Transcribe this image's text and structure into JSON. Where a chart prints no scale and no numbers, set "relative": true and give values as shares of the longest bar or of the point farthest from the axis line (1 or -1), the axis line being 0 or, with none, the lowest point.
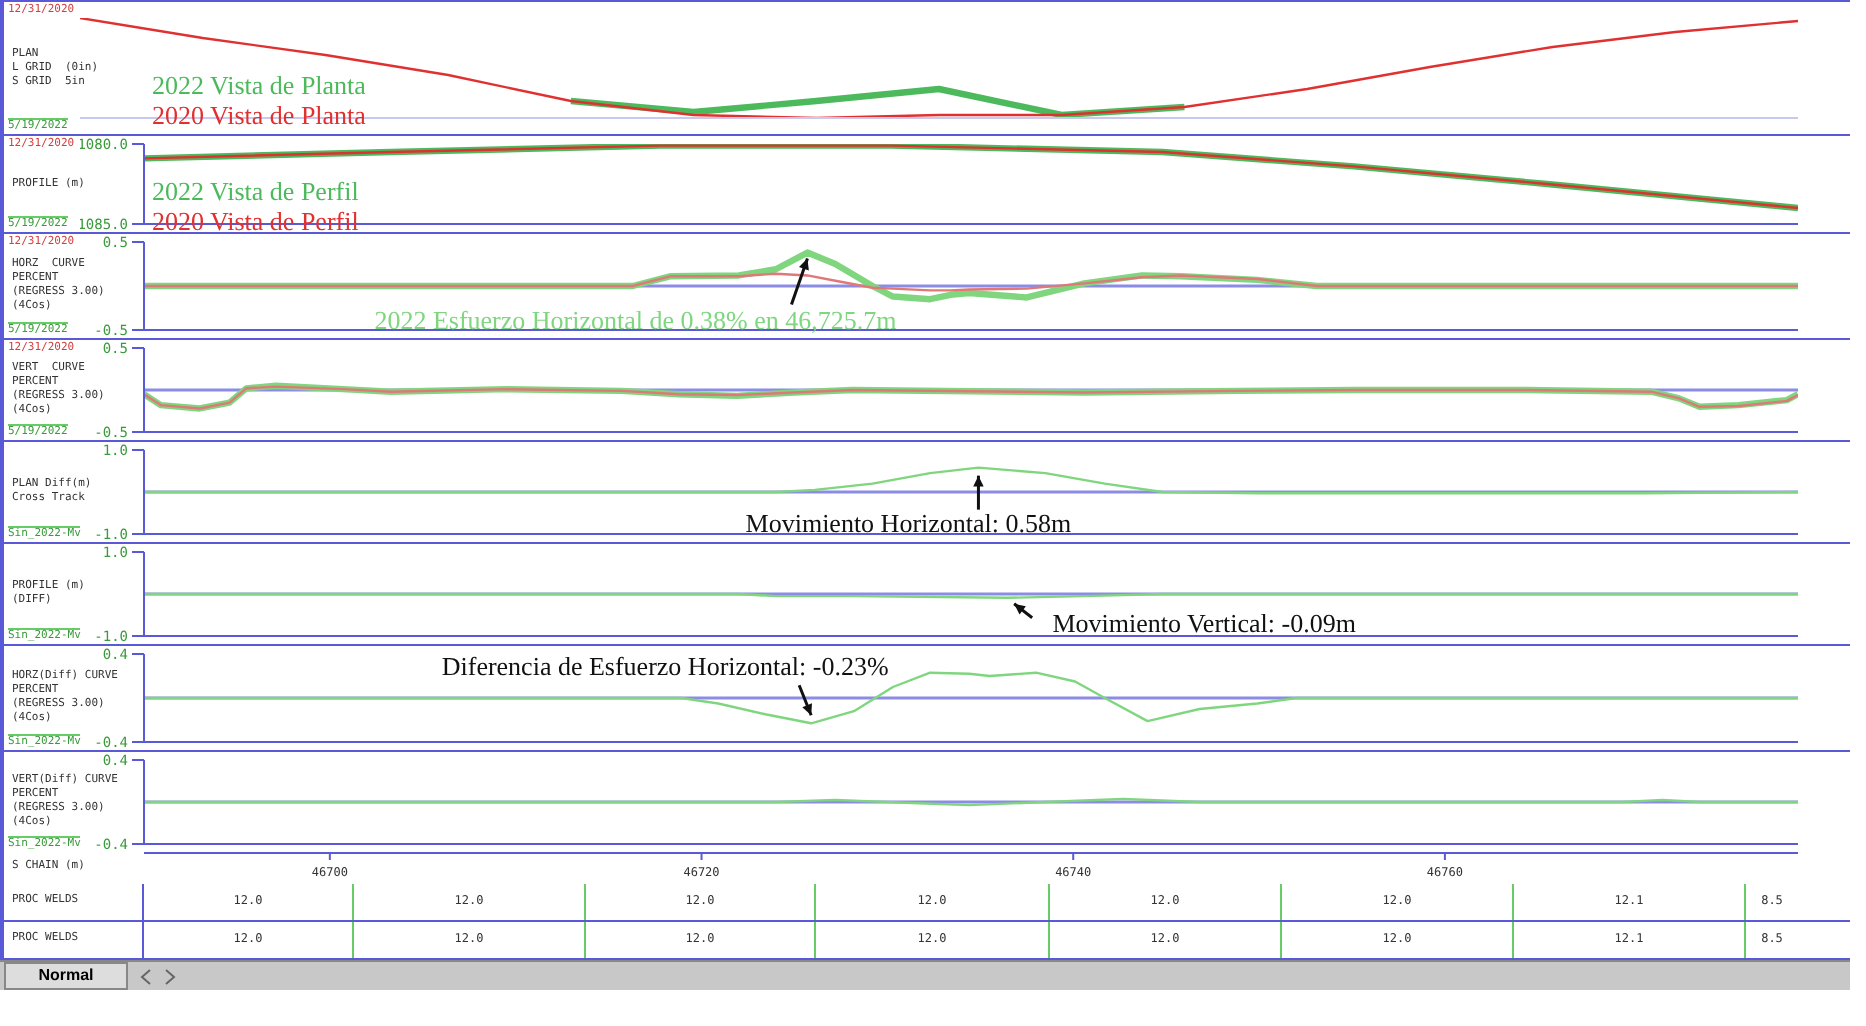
{
  "chart_data": [
    {
      "type": "line",
      "relative": true,
      "ylabel": "PLAN\nL GRID  (0in)\nS GRID  5in",
      "annotations": [
        "12/31/2020",
        "5/19/2022"
      ],
      "categories": [
        null,
        null,
        null,
        null,
        null,
        null,
        null,
        null,
        null,
        null,
        null,
        null,
        null,
        null,
        null
      ],
      "series": [
        {
          "name": "2022 Vista de Planta",
          "color": "#4cba5c",
          "values": [
            null,
            null,
            null,
            null,
            0.17,
            0.06,
            0.17,
            0.29,
            0.03,
            0.11,
            null,
            null,
            null,
            null,
            null
          ]
        },
        {
          "name": "2020 Vista de Planta",
          "color": "#e03030",
          "values": [
            1,
            0.8,
            0.63,
            0.43,
            0.17,
            0.03,
            0,
            0.03,
            0.03,
            0.11,
            0.29,
            0.51,
            0.71,
            0.86,
            0.97
          ]
        }
      ]
    },
    {
      "type": "line",
      "ylabel": "PROFILE (m)",
      "annotations": [
        "12/31/2020",
        "5/19/2022"
      ],
      "xlim": [
        46690,
        46779
      ],
      "ylim": [
        1085,
        1080
      ],
      "yticks": [
        {
          "value": 1080,
          "label": "1080.0"
        },
        {
          "value": 1085,
          "label": "1085.0"
        }
      ],
      "tick_labels": "y",
      "x": [
        46690,
        46703.3,
        46717.8,
        46730.2,
        46744.8,
        46755.1,
        46765.5,
        46779
      ],
      "series": [
        {
          "name": "2022 Vista de Perfil",
          "color": "#4cba5c",
          "values": [
            1080.9,
            1080.5,
            1080.1,
            1080.1,
            1080.5,
            1081.4,
            1082.5,
            1084.0
          ]
        },
        {
          "name": "2020 Vista de Perfil",
          "color": "#e03030",
          "values": [
            1080.9,
            1080.5,
            1080.1,
            1080.1,
            1080.5,
            1081.4,
            1082.5,
            1084.0
          ]
        }
      ]
    },
    {
      "type": "line",
      "ylabel": "HORZ  CURVE\nPERCENT\n(REGRESS 3.00)\n(4Cos)",
      "xlim": [
        46690,
        46779
      ],
      "ylim": [
        -0.5,
        0.5
      ],
      "yticks": [
        0.5,
        -0.5
      ],
      "tick_labels": "y",
      "ref_lines": [
        {
          "axis": "y",
          "value": 0,
          "color": "#8c8ce6"
        }
      ],
      "annotations": [
        "12/31/2020",
        "5/19/2022",
        {
          "text": "2022 Esfuerzo Horizontal de 0.38% en 46,725.7m",
          "x": 46725.7,
          "y": 0.38
        }
      ],
      "x": [
        46690,
        46716.3,
        46718.3,
        46722.0,
        46724.0,
        46725.7,
        46727.2,
        46729.2,
        46730.3,
        46732.3,
        46733.4,
        46734.4,
        46737.5,
        46740.6,
        46743.7,
        46745.8,
        46749.9,
        46753.1,
        46779
      ],
      "series": [
        {
          "color": "#7fd67f",
          "values": [
            0,
            0,
            0.11,
            0.12,
            0.19,
            0.38,
            0.25,
            0,
            -0.12,
            -0.15,
            -0.1,
            -0.08,
            -0.13,
            0.03,
            0.12,
            0.11,
            0.07,
            0,
            0
          ]
        },
        {
          "color": "#e07878",
          "values": [
            0,
            0,
            0.11,
            0.11,
            0.14,
            0.12,
            0.06,
            -0.02,
            -0.03,
            -0.05,
            -0.05,
            -0.04,
            -0.03,
            0.03,
            0.1,
            0.12,
            0.08,
            0,
            0
          ]
        }
      ]
    },
    {
      "type": "line",
      "ylabel": "VERT  CURVE\nPERCENT\n(REGRESS 3.00)\n(4Cos)",
      "xlim": [
        46690,
        46779
      ],
      "ylim": [
        -0.5,
        0.5
      ],
      "yticks": [
        0.5,
        -0.5
      ],
      "tick_labels": "y",
      "ref_lines": [
        {
          "axis": "y",
          "value": 0,
          "color": "#8c8ce6"
        }
      ],
      "annotations": [
        "12/31/2020",
        "5/19/2022"
      ],
      "x": [
        46690,
        46690.9,
        46693.0,
        46694.6,
        46695.5,
        46697.1,
        46700.7,
        46703.3,
        46709.5,
        46715.7,
        46718.8,
        46721.9,
        46725.0,
        46728.1,
        46740.6,
        46748.9,
        46755.1,
        46764.4,
        46771.1,
        46772.6,
        46773.7,
        46775.8,
        46778.4,
        46779
      ],
      "series": [
        {
          "color": "#7fd67f",
          "values": [
            -0.05,
            -0.18,
            -0.22,
            -0.15,
            0.02,
            0.05,
            0.01,
            -0.02,
            0.01,
            -0.01,
            -0.05,
            -0.07,
            -0.03,
            0,
            -0.03,
            -0.01,
            0,
            0,
            -0.02,
            -0.1,
            -0.2,
            -0.18,
            -0.12,
            -0.05
          ]
        },
        {
          "color": "#e07878",
          "values": [
            -0.05,
            -0.18,
            -0.22,
            -0.15,
            0.02,
            0.04,
            0.01,
            -0.02,
            0.01,
            -0.01,
            -0.05,
            -0.06,
            -0.03,
            0,
            -0.03,
            -0.01,
            0,
            0,
            -0.02,
            -0.1,
            -0.2,
            -0.19,
            -0.13,
            -0.06
          ]
        }
      ]
    },
    {
      "type": "line",
      "ylabel": "PLAN Diff(m)\nCross Track",
      "xlim": [
        46690,
        46779
      ],
      "ylim": [
        -1,
        1
      ],
      "yticks": [
        {
          "value": 1,
          "label": "1.0"
        },
        {
          "value": -1,
          "label": "-1.0"
        }
      ],
      "tick_labels": "y",
      "ref_lines": [
        {
          "axis": "y",
          "value": 0,
          "color": "#8c8ce6"
        }
      ],
      "annotations": [
        "Sin_2022-Mv",
        {
          "text": "Movimiento Horizontal: 0.58m",
          "x": 46734.9,
          "y": 0.58
        }
      ],
      "x": [
        46690,
        46724.0,
        46726.1,
        46729.2,
        46732.3,
        46734.9,
        46738.5,
        46741.7,
        46744.8,
        46750.0,
        46770.7,
        46779
      ],
      "series": [
        {
          "color": "#7fd67f",
          "values": [
            0,
            0,
            0.05,
            0.2,
            0.45,
            0.58,
            0.45,
            0.2,
            0,
            -0.03,
            -0.03,
            0
          ]
        }
      ]
    },
    {
      "type": "line",
      "ylabel": "PROFILE (m)\n(DIFF)",
      "xlim": [
        46690,
        46779
      ],
      "ylim": [
        -1,
        1
      ],
      "yticks": [
        {
          "value": 1,
          "label": "1.0"
        },
        {
          "value": -1,
          "label": "-1.0"
        }
      ],
      "tick_labels": "y",
      "ref_lines": [
        {
          "axis": "y",
          "value": 0,
          "color": "#8c8ce6"
        }
      ],
      "annotations": [
        "Sin_2022-Mv",
        {
          "text": "Movimiento Vertical: -0.09m",
          "x": 46736.5,
          "y": -0.09
        }
      ],
      "x": [
        46690,
        46722.0,
        46724.0,
        46728.1,
        46736.5,
        46740.6,
        46744.8,
        46779
      ],
      "series": [
        {
          "color": "#7fd67f",
          "values": [
            0,
            0,
            -0.05,
            -0.05,
            -0.09,
            -0.05,
            0,
            0
          ]
        }
      ]
    },
    {
      "type": "line",
      "ylabel": "HORZ(Diff) CURVE\nPERCENT\n(REGRESS 3.00)\n(4Cos)",
      "xlim": [
        46690,
        46779
      ],
      "ylim": [
        -0.4,
        0.4
      ],
      "yticks": [
        0.4,
        -0.4
      ],
      "tick_labels": "y",
      "ref_lines": [
        {
          "axis": "y",
          "value": 0,
          "color": "#8c8ce6"
        }
      ],
      "annotations": [
        "Sin_2022-Mv",
        {
          "text": "Diferencia de Esfuerzo Horizontal: -0.23%",
          "x": 46725.9,
          "y": -0.23
        }
      ],
      "x": [
        46690,
        46718.9,
        46720.9,
        46723.5,
        46725.9,
        46728.2,
        46730.3,
        46732.3,
        46734.4,
        46735.5,
        46738.0,
        46740.1,
        46741.7,
        46744.0,
        46746.8,
        46749.9,
        46752.0,
        46779
      ],
      "series": [
        {
          "color": "#7fd67f",
          "values": [
            0,
            0,
            -0.05,
            -0.15,
            -0.23,
            -0.12,
            0.1,
            0.23,
            0.22,
            0.2,
            0.23,
            0.15,
            0,
            -0.21,
            -0.1,
            -0.05,
            0,
            0
          ]
        }
      ]
    },
    {
      "type": "line",
      "ylabel": "VERT(Diff) CURVE\nPERCENT\n(REGRESS 3.00)\n(4Cos)",
      "xlabel": "S CHAIN (m)",
      "xlim": [
        46690,
        46779
      ],
      "xticks": [
        46700,
        46720,
        46740,
        46760
      ],
      "ylim": [
        -0.4,
        0.4
      ],
      "yticks": [
        0.4,
        -0.4
      ],
      "ref_lines": [
        {
          "axis": "y",
          "value": 0,
          "color": "#8c8ce6"
        }
      ],
      "annotations": [
        "Sin_2022-Mv"
      ],
      "x": [
        46690,
        46724.0,
        46727.2,
        46731.3,
        46734.4,
        46738.5,
        46742.7,
        46746.8,
        46769.6,
        46771.7,
        46773.7,
        46779
      ],
      "series": [
        {
          "color": "#7fd67f",
          "values": [
            0,
            0,
            0.02,
            -0.01,
            -0.03,
            0,
            0.03,
            0,
            0,
            0.02,
            0,
            0
          ]
        }
      ]
    },
    {
      "type": "other",
      "ylabel": "PROC WELDS",
      "categories": [
        "12.0",
        "12.0",
        "12.0",
        "12.0",
        "12.0",
        "12.0",
        "12.1",
        "8.5"
      ]
    },
    {
      "type": "other",
      "ylabel": "PROC WELDS",
      "categories": [
        "12.0",
        "12.0",
        "12.0",
        "12.0",
        "12.0",
        "12.0",
        "12.1",
        "8.5"
      ],
      "annotations": [
        "Normal"
      ]
    }
  ]
}
